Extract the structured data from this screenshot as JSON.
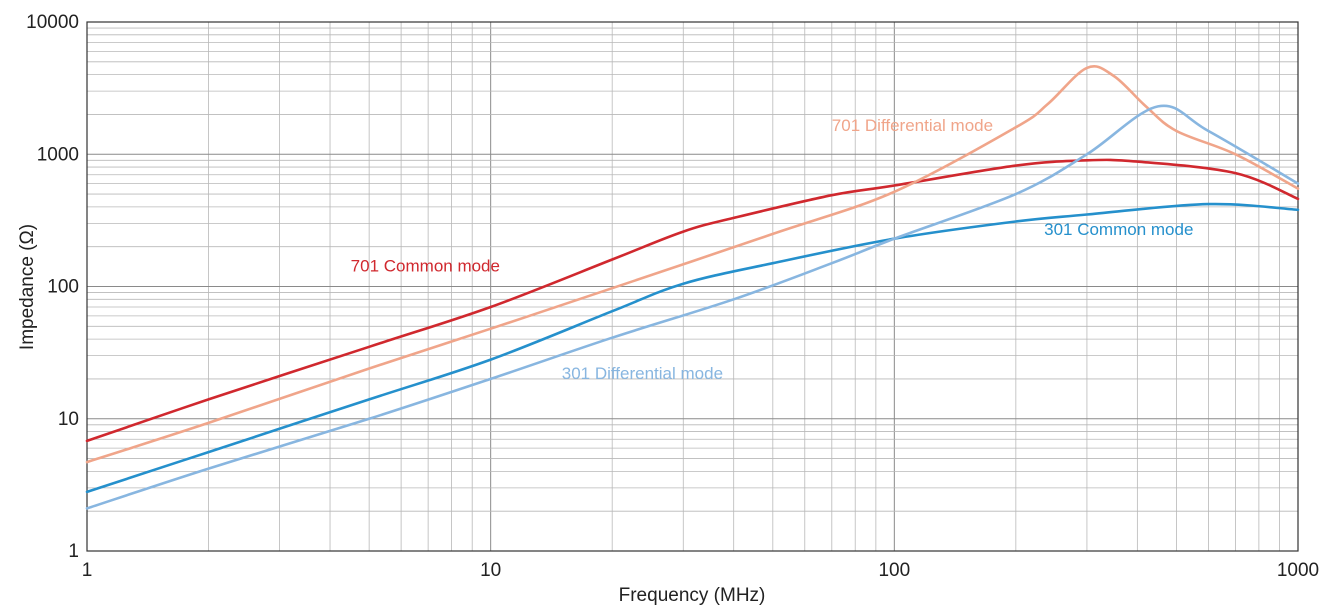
{
  "chart_data": {
    "type": "line",
    "title": "",
    "xlabel": "Frequency (MHz)",
    "ylabel": "Impedance (Ω)",
    "x_scale": "log",
    "y_scale": "log",
    "xlim": [
      1,
      1000
    ],
    "ylim": [
      1,
      10000
    ],
    "grid": true,
    "x_ticks": [
      {
        "value": 1,
        "label": "1"
      },
      {
        "value": 10,
        "label": "10"
      },
      {
        "value": 100,
        "label": "100"
      },
      {
        "value": 1000,
        "label": "1000"
      }
    ],
    "y_ticks": [
      {
        "value": 1,
        "label": "1"
      },
      {
        "value": 10,
        "label": "10"
      },
      {
        "value": 100,
        "label": "100"
      },
      {
        "value": 1000,
        "label": "1000"
      },
      {
        "value": 10000,
        "label": "10000"
      }
    ],
    "series": [
      {
        "name": "701 Common mode",
        "color": "#d0282e",
        "label_at": {
          "x": 4.5,
          "y": 130
        },
        "x": [
          1,
          2,
          5,
          10,
          20,
          30,
          40,
          70,
          100,
          200,
          300,
          400,
          700,
          1000
        ],
        "y": [
          6.8,
          14,
          35,
          70,
          160,
          260,
          330,
          490,
          580,
          820,
          900,
          880,
          720,
          460
        ]
      },
      {
        "name": "701 Differential mode",
        "color": "#f0a58a",
        "label_at": {
          "x": 70,
          "y": 1500
        },
        "x": [
          1,
          2,
          5,
          10,
          20,
          50,
          100,
          200,
          240,
          300,
          350,
          420,
          500,
          700,
          1000
        ],
        "y": [
          4.7,
          9.3,
          24,
          48,
          97,
          250,
          520,
          1600,
          2400,
          4500,
          3900,
          2300,
          1500,
          1000,
          550
        ]
      },
      {
        "name": "301 Common mode",
        "color": "#2590cc",
        "label_at": {
          "x": 235,
          "y": 245
        },
        "x": [
          1,
          2,
          5,
          10,
          20,
          30,
          50,
          100,
          200,
          300,
          600,
          1000
        ],
        "y": [
          2.8,
          5.6,
          14,
          28,
          65,
          105,
          150,
          230,
          310,
          350,
          420,
          380
        ]
      },
      {
        "name": "301 Differential mode",
        "color": "#88b6e0",
        "label_at": {
          "x": 15,
          "y": 20
        },
        "x": [
          1,
          2,
          5,
          10,
          20,
          40,
          70,
          100,
          200,
          300,
          450,
          600,
          1000
        ],
        "y": [
          2.1,
          4.2,
          10,
          20,
          41,
          80,
          150,
          230,
          500,
          1000,
          2300,
          1500,
          600
        ]
      }
    ]
  }
}
